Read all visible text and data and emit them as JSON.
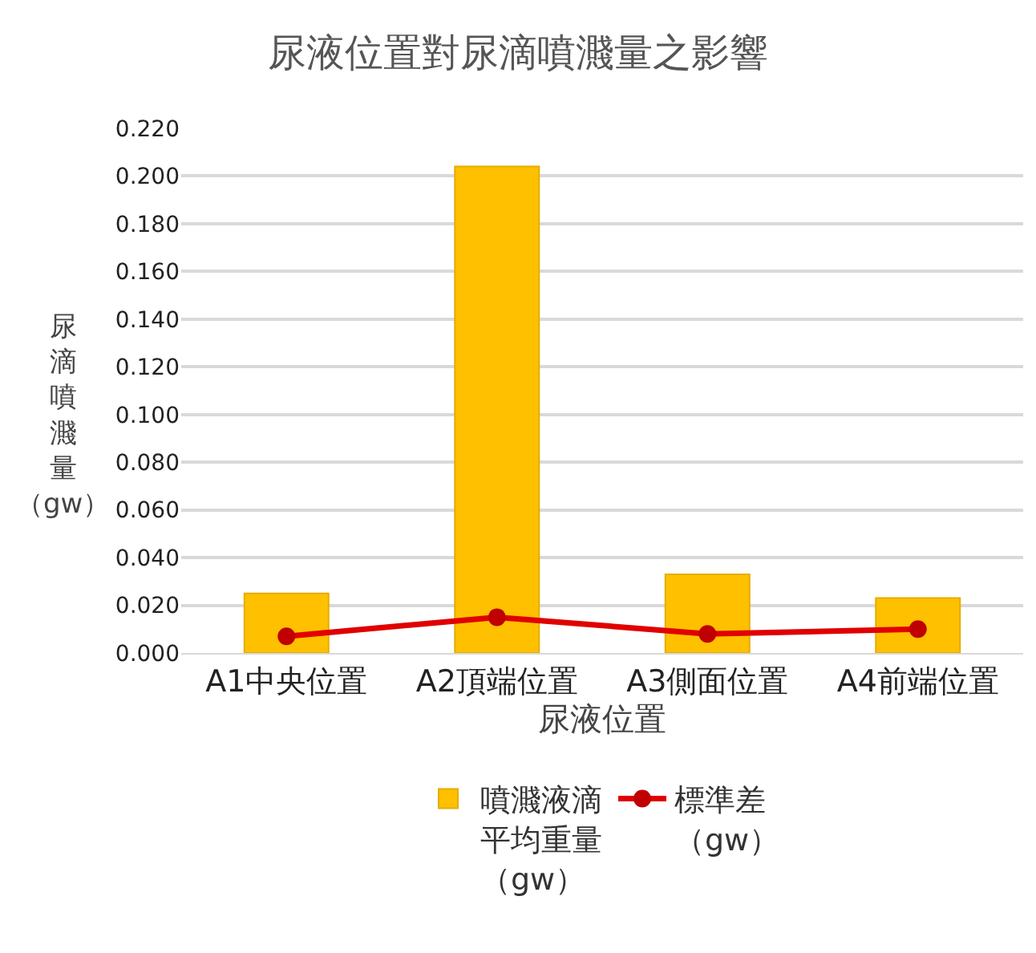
{
  "chart_data": {
    "type": "bar",
    "title": "尿液位置對尿滴噴濺量之影響",
    "xlabel": "尿液位置",
    "ylabel": "尿滴噴濺量（gw）",
    "categories": [
      "A1中央位置",
      "A2頂端位置",
      "A3側面位置",
      "A4前端位置"
    ],
    "series": [
      {
        "name": "噴濺液滴平均重量（gw）",
        "color": "#ffc000",
        "values": [
          0.025,
          0.204,
          0.033,
          0.023
        ]
      },
      {
        "name": "標準差（gw）",
        "type": "line",
        "color": "#e00000",
        "marker": "circle",
        "values": [
          0.007,
          0.015,
          0.008,
          0.01
        ]
      }
    ],
    "ylim": [
      0,
      0.22
    ],
    "yticks": [
      {
        "value": 0,
        "label": "0.000"
      },
      {
        "value": 0.02,
        "label": "0.020"
      },
      {
        "value": 0.04,
        "label": "0.040"
      },
      {
        "value": 0.06,
        "label": "0.060"
      },
      {
        "value": 0.08,
        "label": "0.080"
      },
      {
        "value": 0.1,
        "label": "0.100"
      },
      {
        "value": 0.12,
        "label": "0.120"
      },
      {
        "value": 0.14,
        "label": "0.140"
      },
      {
        "value": 0.16,
        "label": "0.160"
      },
      {
        "value": 0.18,
        "label": "0.180"
      },
      {
        "value": 0.2,
        "label": "0.200"
      },
      {
        "value": 0.22,
        "label": "0.220"
      }
    ],
    "grid": "y",
    "legend": "bottom"
  }
}
